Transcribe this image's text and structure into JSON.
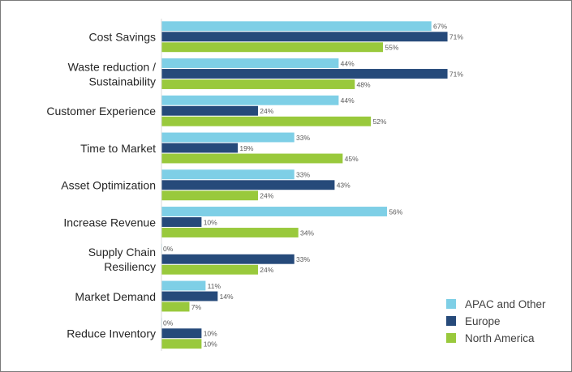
{
  "chart_data": {
    "type": "bar",
    "orientation": "horizontal",
    "categories": [
      [
        "Cost Savings"
      ],
      [
        "Waste reduction /",
        "Sustainability"
      ],
      [
        "Customer Experience"
      ],
      [
        "Time to Market"
      ],
      [
        "Asset Optimization"
      ],
      [
        "Increase Revenue"
      ],
      [
        "Supply Chain",
        "Resiliency"
      ],
      [
        "Market Demand"
      ],
      [
        "Reduce Inventory"
      ]
    ],
    "series": [
      {
        "name": "APAC and Other",
        "color": "#7ecfe6",
        "values": [
          67,
          44,
          44,
          33,
          33,
          56,
          0,
          11,
          0
        ]
      },
      {
        "name": "Europe",
        "color": "#264a7a",
        "values": [
          71,
          71,
          24,
          19,
          43,
          10,
          33,
          14,
          10
        ]
      },
      {
        "name": "North America",
        "color": "#99c93c",
        "values": [
          55,
          48,
          52,
          45,
          24,
          34,
          24,
          7,
          10
        ]
      }
    ],
    "value_suffix": "%",
    "data_labels": true,
    "xlim": [
      0,
      100
    ],
    "grid": false,
    "legend_position": "bottom-right"
  }
}
